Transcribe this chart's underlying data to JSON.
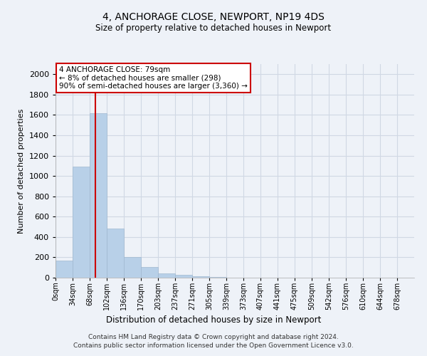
{
  "title": "4, ANCHORAGE CLOSE, NEWPORT, NP19 4DS",
  "subtitle": "Size of property relative to detached houses in Newport",
  "xlabel": "Distribution of detached houses by size in Newport",
  "ylabel": "Number of detached properties",
  "footer_line1": "Contains HM Land Registry data © Crown copyright and database right 2024.",
  "footer_line2": "Contains public sector information licensed under the Open Government Licence v3.0.",
  "annotation_line1": "4 ANCHORAGE CLOSE: 79sqm",
  "annotation_line2": "← 8% of detached houses are smaller (298)",
  "annotation_line3": "90% of semi-detached houses are larger (3,360) →",
  "property_size_sqm": 79,
  "bar_color": "#b8d0e8",
  "bar_edge_color": "#a0b8d0",
  "vline_color": "#cc0000",
  "annotation_box_color": "#cc0000",
  "categories": [
    "0sqm",
    "34sqm",
    "68sqm",
    "102sqm",
    "136sqm",
    "170sqm",
    "203sqm",
    "237sqm",
    "271sqm",
    "305sqm",
    "339sqm",
    "373sqm",
    "407sqm",
    "441sqm",
    "475sqm",
    "509sqm",
    "542sqm",
    "576sqm",
    "610sqm",
    "644sqm",
    "678sqm"
  ],
  "bar_heights": [
    170,
    1090,
    1620,
    480,
    200,
    105,
    40,
    25,
    15,
    10,
    0,
    0,
    0,
    0,
    0,
    0,
    0,
    0,
    0,
    0,
    0
  ],
  "ylim": [
    0,
    2100
  ],
  "yticks": [
    0,
    200,
    400,
    600,
    800,
    1000,
    1200,
    1400,
    1600,
    1800,
    2000
  ],
  "grid_color": "#d0d8e4",
  "bg_color": "#eef2f8",
  "vline_x_bin": 2.32
}
